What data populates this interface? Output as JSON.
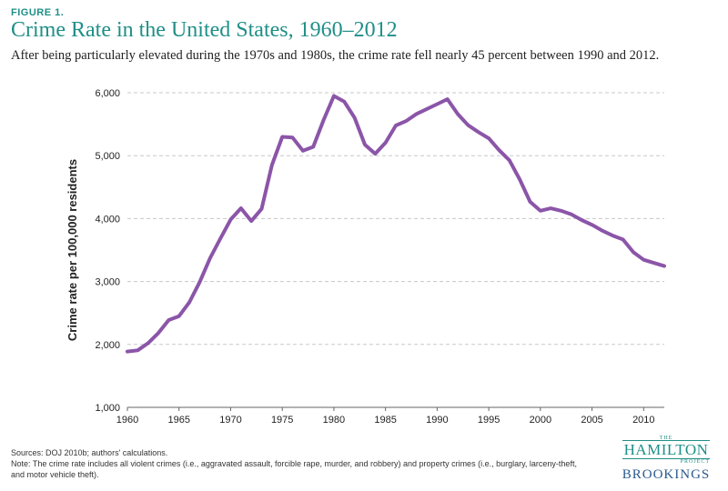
{
  "figure_label": "FIGURE 1.",
  "chart_data": {
    "type": "line",
    "title": "Crime Rate in the United States, 1960–2012",
    "subtitle": "After being particularly elevated during the 1970s and 1980s, the crime rate fell nearly 45 percent between 1990 and 2012.",
    "xlabel": "",
    "ylabel": "Crime rate per 100,000 residents",
    "xlim": [
      1960,
      2012
    ],
    "ylim": [
      1000,
      6000
    ],
    "x_ticks": [
      1960,
      1965,
      1970,
      1975,
      1980,
      1985,
      1990,
      1995,
      2000,
      2005,
      2010
    ],
    "x_tick_labels": [
      "1960",
      "1965",
      "1970",
      "1975",
      "1980",
      "1985",
      "1990",
      "1995",
      "2000",
      "2005",
      "2010"
    ],
    "y_ticks": [
      1000,
      2000,
      3000,
      4000,
      5000,
      6000
    ],
    "y_tick_labels": [
      "1,000",
      "2,000",
      "3,000",
      "4,000",
      "5,000",
      "6,000"
    ],
    "grid": "horizontal dashed",
    "line_color": "#8b55a8",
    "series": [
      {
        "name": "",
        "x": [
          1960,
          1961,
          1962,
          1963,
          1964,
          1965,
          1966,
          1967,
          1968,
          1969,
          1970,
          1971,
          1972,
          1973,
          1974,
          1975,
          1976,
          1977,
          1978,
          1979,
          1980,
          1981,
          1982,
          1983,
          1984,
          1985,
          1986,
          1987,
          1988,
          1989,
          1990,
          1991,
          1992,
          1993,
          1994,
          1995,
          1996,
          1997,
          1998,
          1999,
          2000,
          2001,
          2002,
          2003,
          2004,
          2005,
          2006,
          2007,
          2008,
          2009,
          2010,
          2011,
          2012
        ],
        "y": [
          1887,
          1906,
          2020,
          2180,
          2388,
          2449,
          2671,
          2990,
          3370,
          3680,
          3985,
          4165,
          3961,
          4154,
          4850,
          5299,
          5287,
          5078,
          5140,
          5566,
          5950,
          5858,
          5604,
          5175,
          5031,
          5207,
          5480,
          5550,
          5664,
          5741,
          5820,
          5898,
          5660,
          5484,
          5374,
          5276,
          5087,
          4927,
          4620,
          4267,
          4124,
          4163,
          4125,
          4067,
          3977,
          3900,
          3808,
          3730,
          3667,
          3466,
          3346,
          3295,
          3246
        ]
      }
    ]
  },
  "footer": {
    "sources": "Sources: DOJ 2010b; authors' calculations.",
    "note_line1": "Note: The crime rate includes all violent crimes (i.e., aggravated assault, forcible rape, murder, and robbery) and property crimes (i.e., burglary, larceny-theft,",
    "note_line2": "and motor vehicle theft)."
  },
  "logo": {
    "the": "THE",
    "hamilton": "HAMILTON",
    "project": "PROJECT",
    "brookings": "BROOKINGS",
    "colors": {
      "hamilton": "#1f8f87",
      "brookings": "#2a5a8c"
    }
  }
}
